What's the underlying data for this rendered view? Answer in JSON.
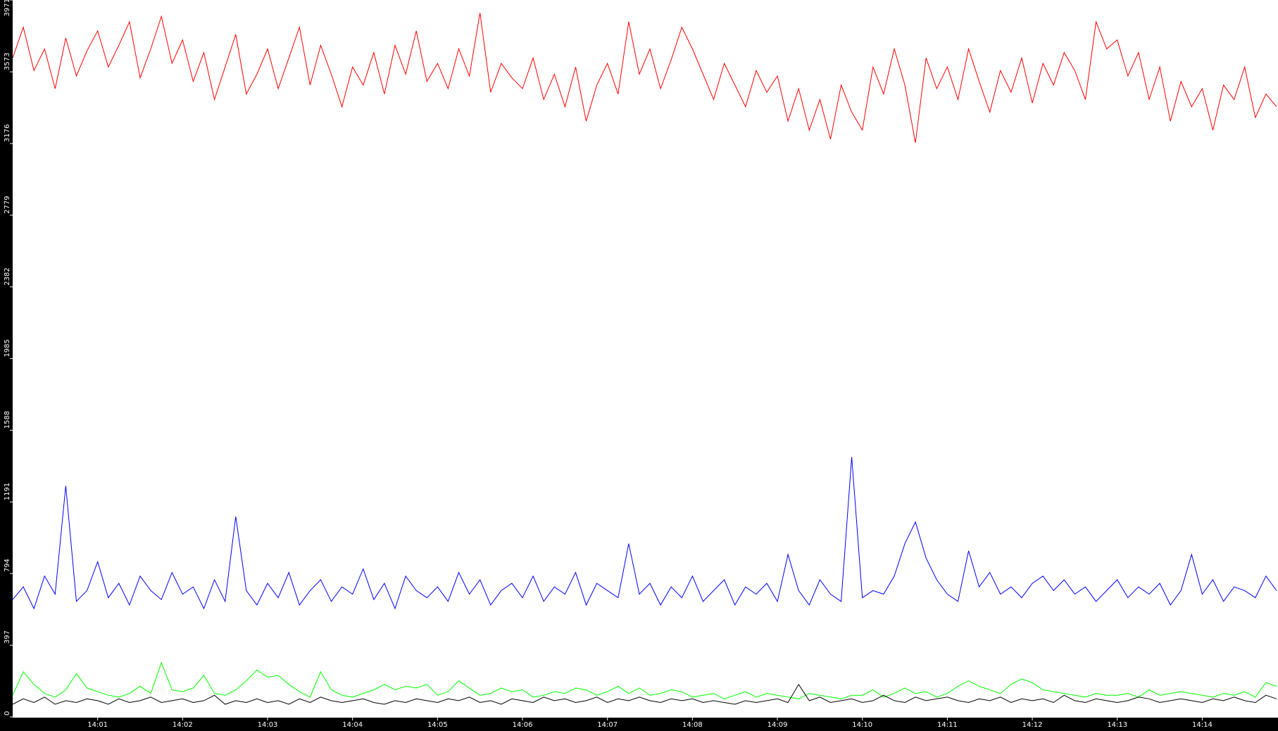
{
  "chart_data": {
    "type": "line",
    "categories": [
      null,
      null,
      null,
      null,
      null,
      null,
      null,
      null,
      "14:01",
      null,
      null,
      null,
      null,
      null,
      null,
      null,
      "14:02",
      null,
      null,
      null,
      null,
      null,
      null,
      null,
      "14:03",
      null,
      null,
      null,
      null,
      null,
      null,
      null,
      "14:04",
      null,
      null,
      null,
      null,
      null,
      null,
      null,
      "14:05",
      null,
      null,
      null,
      null,
      null,
      null,
      null,
      "14:06",
      null,
      null,
      null,
      null,
      null,
      null,
      null,
      "14:07",
      null,
      null,
      null,
      null,
      null,
      null,
      null,
      "14:08",
      null,
      null,
      null,
      null,
      null,
      null,
      null,
      "14:09",
      null,
      null,
      null,
      null,
      null,
      null,
      null,
      "14:10",
      null,
      null,
      null,
      null,
      null,
      null,
      null,
      "14:11",
      null,
      null,
      null,
      null,
      null,
      null,
      null,
      "14:12",
      null,
      null,
      null,
      null,
      null,
      null,
      null,
      "14:13",
      null,
      null,
      null,
      null,
      null,
      null,
      null,
      "14:14",
      null,
      null,
      null,
      null,
      null,
      null,
      null
    ],
    "ylim": [
      0,
      3971
    ],
    "yticks": [
      0,
      397,
      794,
      1191,
      1588,
      1985,
      2382,
      2779,
      3176,
      3573,
      3971
    ],
    "series": [
      {
        "color": "#ff0000",
        "values": [
          3650,
          3820,
          3580,
          3700,
          3480,
          3760,
          3550,
          3690,
          3800,
          3600,
          3720,
          3850,
          3540,
          3700,
          3880,
          3620,
          3750,
          3520,
          3680,
          3420,
          3600,
          3780,
          3450,
          3560,
          3700,
          3480,
          3650,
          3820,
          3500,
          3720,
          3560,
          3380,
          3600,
          3500,
          3680,
          3450,
          3720,
          3560,
          3800,
          3520,
          3620,
          3480,
          3700,
          3550,
          3900,
          3460,
          3620,
          3540,
          3480,
          3650,
          3420,
          3560,
          3380,
          3600,
          3300,
          3500,
          3620,
          3450,
          3850,
          3560,
          3700,
          3480,
          3640,
          3820,
          3700,
          3560,
          3420,
          3620,
          3500,
          3380,
          3580,
          3460,
          3550,
          3300,
          3480,
          3250,
          3420,
          3200,
          3500,
          3350,
          3250,
          3600,
          3450,
          3700,
          3500,
          3180,
          3650,
          3480,
          3600,
          3420,
          3700,
          3520,
          3350,
          3580,
          3460,
          3650,
          3400,
          3620,
          3500,
          3680,
          3580,
          3420,
          3850,
          3700,
          3750,
          3550,
          3680,
          3420,
          3600,
          3300,
          3520,
          3380,
          3480,
          3250,
          3500,
          3420,
          3600,
          3320,
          3450,
          3380
        ]
      },
      {
        "color": "#0000ff",
        "values": [
          650,
          720,
          600,
          780,
          680,
          1280,
          640,
          700,
          860,
          660,
          740,
          620,
          780,
          700,
          650,
          800,
          680,
          720,
          600,
          760,
          640,
          1110,
          700,
          620,
          740,
          660,
          800,
          620,
          700,
          760,
          640,
          720,
          680,
          820,
          650,
          740,
          600,
          780,
          700,
          660,
          720,
          640,
          800,
          680,
          760,
          620,
          700,
          740,
          660,
          780,
          640,
          720,
          680,
          800,
          620,
          740,
          700,
          660,
          960,
          680,
          740,
          620,
          720,
          660,
          780,
          640,
          700,
          760,
          620,
          720,
          680,
          740,
          640,
          900,
          700,
          620,
          760,
          680,
          640,
          1440,
          660,
          700,
          680,
          780,
          960,
          1080,
          880,
          760,
          680,
          640,
          920,
          720,
          800,
          680,
          720,
          660,
          740,
          780,
          700,
          760,
          680,
          720,
          640,
          700,
          760,
          660,
          720,
          680,
          740,
          620,
          700,
          900,
          680,
          760,
          640,
          720,
          700,
          660,
          780,
          700
        ]
      },
      {
        "color": "#00ff00",
        "values": [
          120,
          250,
          180,
          130,
          110,
          150,
          240,
          160,
          140,
          120,
          110,
          130,
          170,
          130,
          300,
          150,
          140,
          160,
          230,
          130,
          120,
          150,
          200,
          260,
          220,
          230,
          180,
          140,
          110,
          250,
          150,
          120,
          110,
          130,
          150,
          180,
          150,
          170,
          160,
          180,
          120,
          140,
          200,
          160,
          120,
          130,
          160,
          140,
          150,
          110,
          120,
          140,
          130,
          160,
          150,
          120,
          140,
          170,
          130,
          160,
          120,
          130,
          150,
          140,
          110,
          120,
          130,
          100,
          120,
          140,
          110,
          130,
          120,
          110,
          100,
          130,
          120,
          110,
          100,
          120,
          120,
          150,
          110,
          130,
          160,
          130,
          140,
          110,
          130,
          170,
          200,
          170,
          150,
          130,
          180,
          210,
          190,
          150,
          140,
          130,
          120,
          110,
          130,
          120,
          120,
          130,
          110,
          150,
          120,
          130,
          140,
          130,
          120,
          110,
          130,
          120,
          140,
          110,
          190,
          170
        ]
      },
      {
        "color": "#000000",
        "values": [
          70,
          100,
          80,
          110,
          70,
          90,
          80,
          100,
          90,
          70,
          100,
          80,
          90,
          110,
          80,
          90,
          100,
          80,
          90,
          120,
          70,
          90,
          80,
          100,
          80,
          90,
          70,
          100,
          80,
          110,
          90,
          80,
          90,
          100,
          80,
          70,
          90,
          80,
          100,
          90,
          80,
          100,
          90,
          110,
          80,
          90,
          70,
          100,
          90,
          80,
          110,
          90,
          100,
          80,
          90,
          110,
          80,
          100,
          90,
          110,
          90,
          80,
          100,
          90,
          100,
          80,
          90,
          80,
          70,
          90,
          80,
          90,
          100,
          80,
          180,
          90,
          110,
          80,
          90,
          100,
          80,
          90,
          120,
          90,
          80,
          110,
          90,
          100,
          110,
          90,
          80,
          100,
          90,
          110,
          80,
          100,
          90,
          100,
          80,
          120,
          90,
          80,
          100,
          90,
          80,
          90,
          110,
          100,
          80,
          90,
          100,
          90,
          80,
          100,
          90,
          110,
          90,
          80,
          120,
          100
        ]
      }
    ]
  }
}
